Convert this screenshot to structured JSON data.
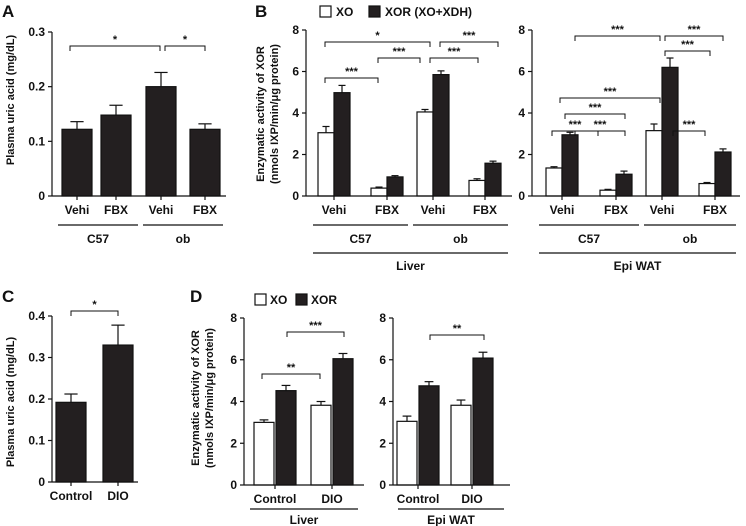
{
  "chart_data": [
    {
      "panel": "A",
      "type": "bar",
      "ylabel": "Plasma uric acid (mg/dL)",
      "ylim": [
        0,
        0.3
      ],
      "yticks": [
        "0",
        "0.1",
        "0.2",
        "0.3"
      ],
      "categories": [
        "Vehi",
        "FBX",
        "Vehi",
        "FBX"
      ],
      "groups": [
        "C57",
        "ob"
      ],
      "values": [
        0.122,
        0.148,
        0.2,
        0.122
      ],
      "errors": [
        0.014,
        0.018,
        0.026,
        0.01
      ],
      "significance": [
        "*",
        "*"
      ]
    },
    {
      "panel": "B",
      "type": "bar",
      "ylabel_line1": "Enzymatic activity of XOR",
      "ylabel_line2": "(nmols IXP/min/μg protein)",
      "ylim": [
        0,
        8
      ],
      "yticks": [
        "0",
        "2",
        "4",
        "6",
        "8"
      ],
      "legend": [
        "XO",
        "XOR (XO+XDH)"
      ],
      "tissues": [
        {
          "name": "Liver",
          "categories": [
            "Vehi",
            "FBX",
            "Vehi",
            "FBX"
          ],
          "groups": [
            "C57",
            "ob"
          ],
          "series": [
            {
              "name": "XO",
              "values": [
                3.05,
                0.38,
                4.05,
                0.75
              ],
              "errors": [
                0.3,
                0.05,
                0.12,
                0.08
              ]
            },
            {
              "name": "XOR (XO+XDH)",
              "values": [
                4.98,
                0.92,
                5.85,
                1.58
              ],
              "errors": [
                0.35,
                0.06,
                0.18,
                0.1
              ]
            }
          ],
          "significance": [
            "*",
            "***",
            "***",
            "***",
            "***"
          ]
        },
        {
          "name": "Epi WAT",
          "categories": [
            "Vehi",
            "FBX",
            "Vehi",
            "FBX"
          ],
          "groups": [
            "C57",
            "ob"
          ],
          "series": [
            {
              "name": "XO",
              "values": [
                1.35,
                0.28,
                3.15,
                0.6
              ],
              "errors": [
                0.06,
                0.04,
                0.32,
                0.05
              ]
            },
            {
              "name": "XOR (XO+XDH)",
              "values": [
                2.95,
                1.05,
                6.2,
                2.12
              ],
              "errors": [
                0.12,
                0.15,
                0.45,
                0.15
              ]
            }
          ],
          "significance": [
            "***",
            "***",
            "***",
            "***",
            "***",
            "***",
            "***",
            "***"
          ]
        }
      ]
    },
    {
      "panel": "C",
      "type": "bar",
      "ylabel": "Plasma uric acid (mg/dL)",
      "ylim": [
        0,
        0.4
      ],
      "yticks": [
        "0",
        "0.1",
        "0.2",
        "0.3",
        "0.4"
      ],
      "categories": [
        "Control",
        "DIO"
      ],
      "values": [
        0.192,
        0.33
      ],
      "errors": [
        0.02,
        0.048
      ],
      "significance": [
        "*"
      ]
    },
    {
      "panel": "D",
      "type": "bar",
      "ylabel_line1": "Enzymatic activity of XOR",
      "ylabel_line2": "(nmols IXP/min/μg protein)",
      "ylim": [
        0,
        8
      ],
      "yticks": [
        "0",
        "2",
        "4",
        "6",
        "8"
      ],
      "legend": [
        "XO",
        "XOR"
      ],
      "tissues": [
        {
          "name": "Liver",
          "categories": [
            "Control",
            "DIO"
          ],
          "series": [
            {
              "name": "XO",
              "values": [
                3.0,
                3.82
              ],
              "errors": [
                0.12,
                0.18
              ]
            },
            {
              "name": "XOR",
              "values": [
                4.52,
                6.05
              ],
              "errors": [
                0.25,
                0.25
              ]
            }
          ],
          "significance": [
            "**",
            "***"
          ]
        },
        {
          "name": "Epi WAT",
          "categories": [
            "Control",
            "DIO"
          ],
          "series": [
            {
              "name": "XO",
              "values": [
                3.05,
                3.82
              ],
              "errors": [
                0.25,
                0.25
              ]
            },
            {
              "name": "XOR",
              "values": [
                4.75,
                6.08
              ],
              "errors": [
                0.2,
                0.28
              ]
            }
          ],
          "significance": [
            "**"
          ]
        }
      ]
    }
  ],
  "colors": {
    "fill_dark": "#231f20",
    "fill_light": "#ffffff",
    "stroke": "#111111"
  }
}
